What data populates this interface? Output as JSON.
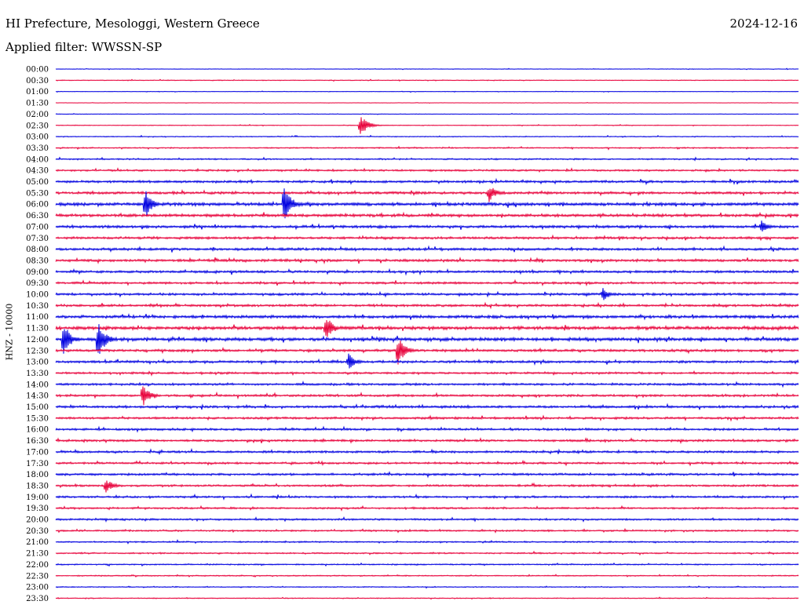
{
  "header": {
    "title": "HI Prefecture, Mesologgi, Western Greece",
    "date": "2024-12-16",
    "filter": "Applied filter: WWSSN-SP"
  },
  "chart_data": {
    "type": "line",
    "title": "HI Prefecture, Mesologgi, Western Greece",
    "subtitle": "Applied filter: WWSSN-SP",
    "date": "2024-12-16",
    "ylabel": "HNZ - 10000",
    "xlabel": "",
    "colors": {
      "blue": "#0000e0",
      "red": "#e8003a"
    },
    "color_pattern": [
      "blue",
      "red"
    ],
    "rows": [
      "00:00",
      "00:30",
      "01:00",
      "01:30",
      "02:00",
      "02:30",
      "03:00",
      "03:30",
      "04:00",
      "04:30",
      "05:00",
      "05:30",
      "06:00",
      "06:30",
      "07:00",
      "07:30",
      "08:00",
      "08:30",
      "09:00",
      "09:30",
      "10:00",
      "10:30",
      "11:00",
      "11:30",
      "12:00",
      "12:30",
      "13:00",
      "13:30",
      "14:00",
      "14:30",
      "15:00",
      "15:30",
      "16:00",
      "16:30",
      "17:00",
      "17:30",
      "18:00",
      "18:30",
      "19:00",
      "19:30",
      "20:00",
      "20:30",
      "21:00",
      "21:30",
      "22:00",
      "22:30",
      "23:00",
      "23:30"
    ],
    "noise_level": [
      0.3,
      0.4,
      0.3,
      0.2,
      0.3,
      0.4,
      0.5,
      0.7,
      0.8,
      1.0,
      1.3,
      1.4,
      1.8,
      1.6,
      1.5,
      1.3,
      1.4,
      1.4,
      1.3,
      1.2,
      1.3,
      1.3,
      1.6,
      1.8,
      1.8,
      1.4,
      1.3,
      1.1,
      1.2,
      1.2,
      1.3,
      1.2,
      1.2,
      1.2,
      1.2,
      1.1,
      1.2,
      1.1,
      1.1,
      1.0,
      1.0,
      0.9,
      0.8,
      0.8,
      0.7,
      0.6,
      0.5,
      0.5
    ],
    "events": [
      {
        "row": "02:30",
        "minute": 12.3,
        "amplitude": 16
      },
      {
        "row": "05:30",
        "minute": 17.5,
        "amplitude": 12
      },
      {
        "row": "06:00",
        "minute": 3.6,
        "amplitude": 20
      },
      {
        "row": "06:00",
        "minute": 9.2,
        "amplitude": 30
      },
      {
        "row": "11:30",
        "minute": 10.9,
        "amplitude": 18
      },
      {
        "row": "12:00",
        "minute": 0.3,
        "amplitude": 24
      },
      {
        "row": "12:00",
        "minute": 1.7,
        "amplitude": 28
      },
      {
        "row": "12:30",
        "minute": 13.8,
        "amplitude": 22
      },
      {
        "row": "13:00",
        "minute": 11.8,
        "amplitude": 12
      },
      {
        "row": "14:30",
        "minute": 3.5,
        "amplitude": 16
      },
      {
        "row": "18:30",
        "minute": 2.0,
        "amplitude": 11
      },
      {
        "row": "10:00",
        "minute": 22.1,
        "amplitude": 9
      },
      {
        "row": "07:00",
        "minute": 28.5,
        "amplitude": 9
      }
    ]
  }
}
